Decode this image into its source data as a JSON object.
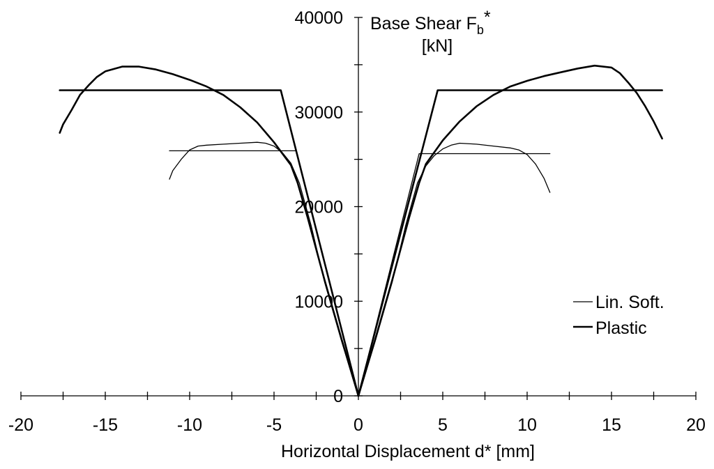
{
  "chart_data": {
    "type": "line",
    "title": "",
    "xlabel": "Horizontal Displacement d* [mm]",
    "ylabel_line1": "Base Shear F",
    "ylabel_sub": "b",
    "ylabel_sup": "*",
    "ylabel_line2": "[kN]",
    "xlim": [
      -20,
      20
    ],
    "ylim": [
      0,
      40000
    ],
    "xticks": [
      -20,
      -15,
      -10,
      -5,
      0,
      5,
      10,
      15,
      20
    ],
    "xtick_labels": [
      "-20",
      "-15",
      "-10",
      "-5",
      "0",
      "5",
      "10",
      "15",
      "20"
    ],
    "yticks": [
      0,
      10000,
      20000,
      30000,
      40000
    ],
    "ytick_labels": [
      "0",
      "10000",
      "20000",
      "30000",
      "40000"
    ],
    "grid": false,
    "legend_position": "right",
    "series": [
      {
        "name": "Lin. Soft.",
        "style": "thin",
        "capacity_curve_pos": [
          [
            0,
            0
          ],
          [
            1,
            5800
          ],
          [
            2,
            12000
          ],
          [
            2.8,
            18000
          ],
          [
            3.5,
            22500
          ],
          [
            4,
            24300
          ],
          [
            4.5,
            25400
          ],
          [
            5,
            26100
          ],
          [
            5.5,
            26500
          ],
          [
            6,
            26700
          ],
          [
            7,
            26600
          ],
          [
            8,
            26400
          ],
          [
            9,
            26200
          ],
          [
            9.5,
            26000
          ],
          [
            10,
            25500
          ],
          [
            10.5,
            24500
          ],
          [
            11,
            23000
          ],
          [
            11.35,
            21500
          ]
        ],
        "capacity_curve_neg": [
          [
            0,
            0
          ],
          [
            -1,
            5800
          ],
          [
            -2,
            12000
          ],
          [
            -2.8,
            18000
          ],
          [
            -3.5,
            22500
          ],
          [
            -4,
            24600
          ],
          [
            -4.5,
            25700
          ],
          [
            -5,
            26400
          ],
          [
            -5.5,
            26700
          ],
          [
            -6,
            26800
          ],
          [
            -7,
            26700
          ],
          [
            -8,
            26600
          ],
          [
            -9,
            26500
          ],
          [
            -9.5,
            26400
          ],
          [
            -10,
            26000
          ],
          [
            -10.5,
            25000
          ],
          [
            -11,
            23800
          ],
          [
            -11.2,
            22900
          ]
        ],
        "bilinear_pos": [
          [
            0,
            0
          ],
          [
            3.6,
            25600
          ],
          [
            11.35,
            25600
          ]
        ],
        "bilinear_neg": [
          [
            0,
            0
          ],
          [
            -3.7,
            25900
          ],
          [
            -11.2,
            25900
          ]
        ]
      },
      {
        "name": "Plastic",
        "style": "thick",
        "capacity_curve_pos": [
          [
            0,
            0
          ],
          [
            1,
            6000
          ],
          [
            2,
            12200
          ],
          [
            3,
            18800
          ],
          [
            3.6,
            22500
          ],
          [
            4,
            24500
          ],
          [
            5,
            27000
          ],
          [
            6,
            29000
          ],
          [
            7,
            30600
          ],
          [
            8,
            31800
          ],
          [
            9,
            32700
          ],
          [
            10,
            33300
          ],
          [
            11,
            33800
          ],
          [
            12,
            34200
          ],
          [
            13,
            34600
          ],
          [
            14,
            34900
          ],
          [
            15,
            34700
          ],
          [
            15.5,
            34100
          ],
          [
            16,
            33100
          ],
          [
            16.5,
            32000
          ],
          [
            17,
            30600
          ],
          [
            17.5,
            29000
          ],
          [
            18,
            27200
          ]
        ],
        "capacity_curve_neg": [
          [
            0,
            0
          ],
          [
            -1,
            6000
          ],
          [
            -2,
            12200
          ],
          [
            -3,
            18800
          ],
          [
            -3.6,
            22500
          ],
          [
            -4,
            24400
          ],
          [
            -5,
            26800
          ],
          [
            -6,
            28900
          ],
          [
            -7,
            30500
          ],
          [
            -8,
            31800
          ],
          [
            -9,
            32700
          ],
          [
            -10,
            33400
          ],
          [
            -11,
            34000
          ],
          [
            -12,
            34500
          ],
          [
            -13,
            34800
          ],
          [
            -14,
            34800
          ],
          [
            -15,
            34300
          ],
          [
            -15.5,
            33700
          ],
          [
            -16,
            32800
          ],
          [
            -16.5,
            31800
          ],
          [
            -17,
            30200
          ],
          [
            -17.5,
            28700
          ],
          [
            -17.7,
            27800
          ]
        ],
        "bilinear_pos": [
          [
            0,
            0
          ],
          [
            4.7,
            32300
          ],
          [
            18,
            32300
          ]
        ],
        "bilinear_neg": [
          [
            0,
            0
          ],
          [
            -4.6,
            32300
          ],
          [
            -17.7,
            32300
          ]
        ]
      }
    ]
  }
}
